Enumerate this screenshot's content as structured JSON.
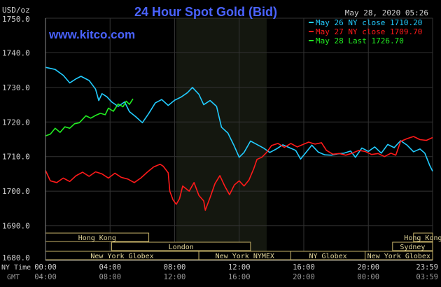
{
  "chart_data": {
    "type": "line",
    "title": "24 Hour Spot Gold (Bid)",
    "site": "www.kitco.com",
    "timestamp": "May 28, 2020 05:26",
    "y_unit": "USD/oz",
    "ylim": [
      1680.0,
      1750.0
    ],
    "y_ticks": [
      "1690.0",
      "1700.0",
      "1710.0",
      "1720.0",
      "1730.0",
      "1740.0",
      "1750.0"
    ],
    "y_ticks_bottom": "1680.0",
    "x_axis_rows": [
      {
        "label": "NY Time",
        "ticks": [
          "00:00",
          "04:00",
          "08:00",
          "12:00",
          "16:00",
          "20:00",
          "23:59"
        ]
      },
      {
        "label": "GMT",
        "ticks": [
          "04:00",
          "08:00",
          "12:00",
          "16:00",
          "20:00",
          "00:00",
          "03:59"
        ]
      }
    ],
    "grid": true,
    "background": "#000000",
    "grid_color": "#333333",
    "axis_color": "#888888",
    "title_color": "#4a63ff",
    "highlight": {
      "from_hour": 8.1,
      "to_hour": 13.7,
      "color": "#14170f"
    },
    "series": [
      {
        "name": "May 26 NY close 1710.20",
        "color": "#22ccff",
        "points": [
          [
            0.0,
            1735.8
          ],
          [
            0.6,
            1735.2
          ],
          [
            1.1,
            1733.5
          ],
          [
            1.5,
            1731.3
          ],
          [
            1.9,
            1732.5
          ],
          [
            2.2,
            1733.2
          ],
          [
            2.7,
            1732.0
          ],
          [
            3.1,
            1729.5
          ],
          [
            3.3,
            1726.2
          ],
          [
            3.5,
            1728.2
          ],
          [
            3.8,
            1727.3
          ],
          [
            4.1,
            1725.8
          ],
          [
            4.5,
            1724.5
          ],
          [
            4.9,
            1725.8
          ],
          [
            5.2,
            1723.0
          ],
          [
            5.6,
            1721.5
          ],
          [
            6.0,
            1719.8
          ],
          [
            6.4,
            1722.5
          ],
          [
            6.8,
            1725.5
          ],
          [
            7.2,
            1726.5
          ],
          [
            7.6,
            1724.8
          ],
          [
            8.0,
            1726.3
          ],
          [
            8.4,
            1727.2
          ],
          [
            8.8,
            1728.5
          ],
          [
            9.1,
            1730.0
          ],
          [
            9.5,
            1728.0
          ],
          [
            9.8,
            1725.0
          ],
          [
            10.2,
            1726.2
          ],
          [
            10.6,
            1724.5
          ],
          [
            10.9,
            1718.5
          ],
          [
            11.3,
            1716.8
          ],
          [
            11.7,
            1713.0
          ],
          [
            12.0,
            1709.8
          ],
          [
            12.3,
            1711.2
          ],
          [
            12.7,
            1714.5
          ],
          [
            13.1,
            1713.5
          ],
          [
            13.5,
            1712.5
          ],
          [
            13.9,
            1711.2
          ],
          [
            14.3,
            1712.2
          ],
          [
            14.7,
            1713.4
          ],
          [
            15.1,
            1712.6
          ],
          [
            15.5,
            1711.8
          ],
          [
            15.8,
            1709.3
          ],
          [
            16.1,
            1711.0
          ],
          [
            16.5,
            1713.3
          ],
          [
            16.9,
            1711.3
          ],
          [
            17.3,
            1710.5
          ],
          [
            17.7,
            1710.4
          ],
          [
            18.1,
            1710.8
          ],
          [
            18.5,
            1711.0
          ],
          [
            18.9,
            1711.6
          ],
          [
            19.2,
            1709.8
          ],
          [
            19.6,
            1712.5
          ],
          [
            20.0,
            1711.5
          ],
          [
            20.4,
            1712.8
          ],
          [
            20.8,
            1711.0
          ],
          [
            21.2,
            1713.5
          ],
          [
            21.6,
            1712.6
          ],
          [
            22.0,
            1714.6
          ],
          [
            22.4,
            1713.3
          ],
          [
            22.8,
            1711.4
          ],
          [
            23.2,
            1712.2
          ],
          [
            23.5,
            1711.0
          ],
          [
            23.8,
            1707.5
          ],
          [
            23.98,
            1705.8
          ]
        ]
      },
      {
        "name": "May 27 NY close 1709.70",
        "color": "#ff1a1a",
        "points": [
          [
            0.0,
            1706.0
          ],
          [
            0.3,
            1703.0
          ],
          [
            0.7,
            1702.5
          ],
          [
            1.1,
            1703.8
          ],
          [
            1.5,
            1702.8
          ],
          [
            1.9,
            1704.5
          ],
          [
            2.3,
            1705.5
          ],
          [
            2.7,
            1704.3
          ],
          [
            3.1,
            1705.6
          ],
          [
            3.5,
            1705.0
          ],
          [
            3.9,
            1703.8
          ],
          [
            4.3,
            1705.2
          ],
          [
            4.7,
            1704.0
          ],
          [
            5.1,
            1703.5
          ],
          [
            5.5,
            1702.5
          ],
          [
            5.9,
            1703.8
          ],
          [
            6.3,
            1705.5
          ],
          [
            6.7,
            1707.0
          ],
          [
            7.1,
            1707.8
          ],
          [
            7.3,
            1707.2
          ],
          [
            7.6,
            1705.3
          ],
          [
            7.7,
            1700.0
          ],
          [
            7.9,
            1697.5
          ],
          [
            8.1,
            1696.2
          ],
          [
            8.3,
            1697.8
          ],
          [
            8.5,
            1701.5
          ],
          [
            8.9,
            1700.0
          ],
          [
            9.2,
            1702.5
          ],
          [
            9.5,
            1698.8
          ],
          [
            9.8,
            1697.2
          ],
          [
            9.9,
            1694.5
          ],
          [
            10.2,
            1698.2
          ],
          [
            10.5,
            1702.2
          ],
          [
            10.8,
            1704.5
          ],
          [
            11.1,
            1701.5
          ],
          [
            11.4,
            1699.0
          ],
          [
            11.7,
            1701.8
          ],
          [
            12.0,
            1703.0
          ],
          [
            12.3,
            1701.5
          ],
          [
            12.6,
            1703.2
          ],
          [
            12.9,
            1706.5
          ],
          [
            13.1,
            1709.2
          ],
          [
            13.4,
            1709.8
          ],
          [
            13.7,
            1711.2
          ],
          [
            14.0,
            1713.2
          ],
          [
            14.4,
            1713.8
          ],
          [
            14.8,
            1712.7
          ],
          [
            15.2,
            1713.8
          ],
          [
            15.6,
            1712.8
          ],
          [
            15.9,
            1713.4
          ],
          [
            16.3,
            1714.2
          ],
          [
            16.7,
            1713.6
          ],
          [
            17.1,
            1714.0
          ],
          [
            17.4,
            1711.8
          ],
          [
            17.8,
            1710.7
          ],
          [
            18.2,
            1710.9
          ],
          [
            18.6,
            1710.4
          ],
          [
            19.0,
            1711.0
          ],
          [
            19.4,
            1711.8
          ],
          [
            19.8,
            1711.5
          ],
          [
            20.2,
            1710.6
          ],
          [
            20.6,
            1710.9
          ],
          [
            21.0,
            1710.0
          ],
          [
            21.4,
            1711.0
          ],
          [
            21.7,
            1710.4
          ],
          [
            22.0,
            1714.4
          ],
          [
            22.4,
            1715.2
          ],
          [
            22.8,
            1715.8
          ],
          [
            23.2,
            1714.9
          ],
          [
            23.6,
            1714.7
          ],
          [
            23.98,
            1715.5
          ]
        ]
      },
      {
        "name": "May 28 Last 1726.70",
        "color": "#22ee22",
        "points": [
          [
            0.0,
            1716.0
          ],
          [
            0.3,
            1716.5
          ],
          [
            0.6,
            1718.2
          ],
          [
            0.9,
            1717.0
          ],
          [
            1.2,
            1718.6
          ],
          [
            1.5,
            1718.2
          ],
          [
            1.8,
            1719.5
          ],
          [
            2.1,
            1719.8
          ],
          [
            2.5,
            1721.8
          ],
          [
            2.8,
            1721.1
          ],
          [
            3.1,
            1721.9
          ],
          [
            3.4,
            1722.5
          ],
          [
            3.7,
            1722.1
          ],
          [
            3.9,
            1724.0
          ],
          [
            4.2,
            1723.1
          ],
          [
            4.5,
            1725.2
          ],
          [
            4.8,
            1724.4
          ],
          [
            5.0,
            1726.0
          ],
          [
            5.2,
            1725.1
          ],
          [
            5.42,
            1726.7
          ]
        ]
      }
    ],
    "sessions": [
      {
        "label": "Hong Kong",
        "row": 0,
        "from": 0.0,
        "to": 6.4
      },
      {
        "label": "Hong Kong",
        "row": 0,
        "from": 22.8,
        "to": 23.98
      },
      {
        "label": "London",
        "row": 1,
        "from": 4.1,
        "to": 12.7
      },
      {
        "label": "Sydney",
        "row": 1,
        "from": 21.5,
        "to": 23.98
      },
      {
        "label": "New York Globex",
        "row": 2,
        "from": 0.0,
        "to": 9.5
      },
      {
        "label": "New York NYMEX",
        "row": 2,
        "from": 9.5,
        "to": 15.2
      },
      {
        "label": "NY Globex",
        "row": 2,
        "from": 15.2,
        "to": 19.8
      },
      {
        "label": "New York Globex",
        "row": 2,
        "from": 19.8,
        "to": 23.98
      }
    ],
    "session_colors": {
      "fill": "#000000",
      "border": "#c8b46a",
      "text": "#e0d49a"
    }
  }
}
